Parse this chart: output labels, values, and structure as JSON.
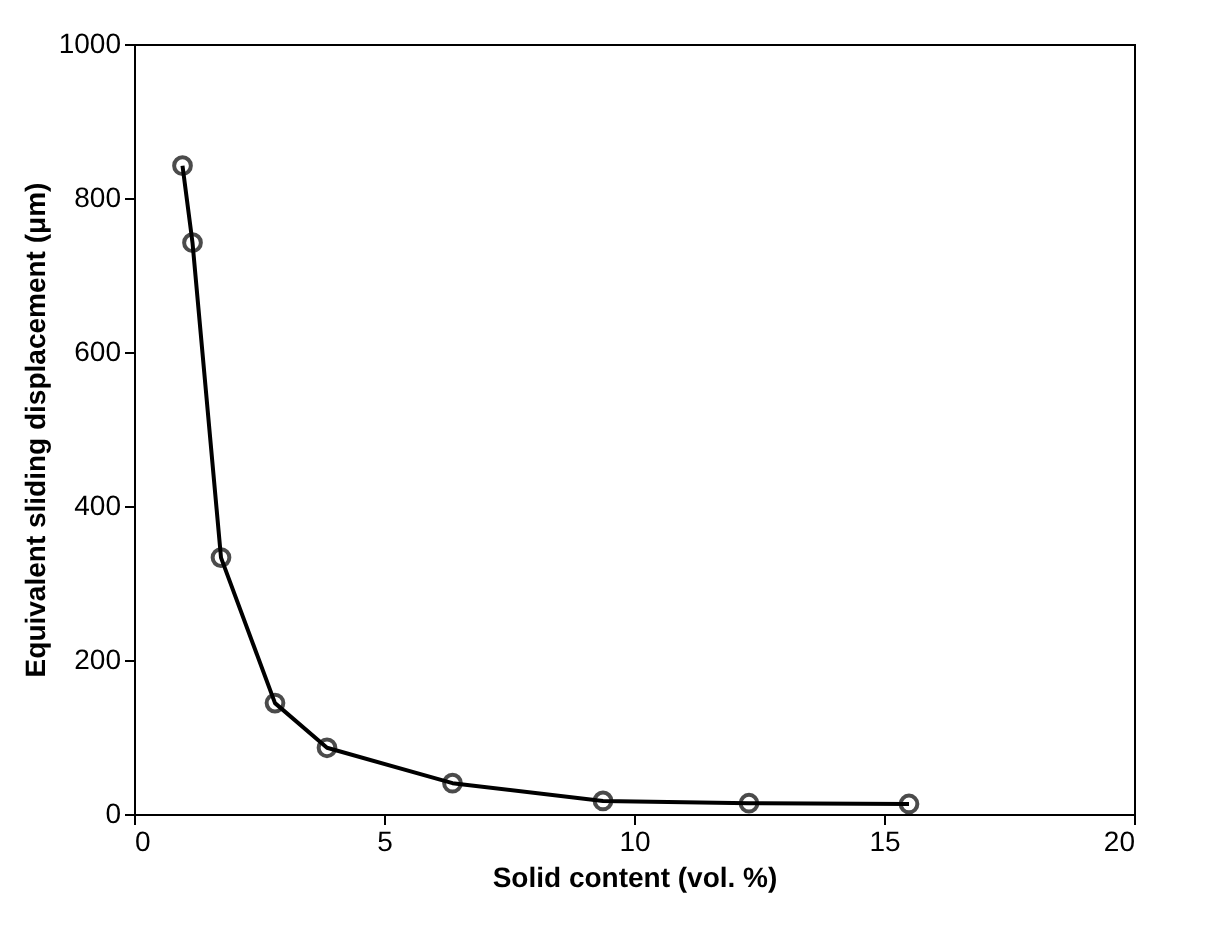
{
  "chart_data": {
    "type": "line",
    "xlabel": "Solid content  (vol. %)",
    "ylabel": "Equivalent sliding displacement  (μm)",
    "x": [
      0.97,
      1.17,
      1.74,
      2.82,
      3.86,
      6.37,
      9.38,
      12.3,
      15.5
    ],
    "series": [
      {
        "color": "#000000",
        "values": [
          842,
          742,
          333,
          144,
          86,
          40,
          17,
          14,
          13
        ]
      }
    ],
    "xlim": [
      0,
      20
    ],
    "xticks": [
      0,
      5,
      10,
      15,
      20
    ],
    "ylim": [
      0,
      1000
    ],
    "yticks": [
      0,
      200,
      400,
      600,
      800,
      1000
    ],
    "marker": "circle",
    "line_style": "solid",
    "grid": false,
    "legend": false
  }
}
